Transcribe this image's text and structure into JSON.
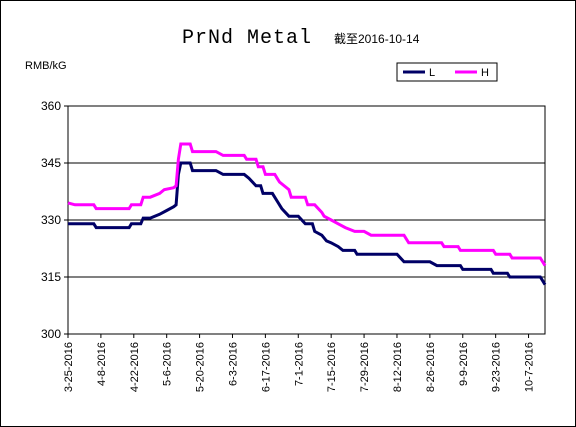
{
  "chart_data": {
    "type": "line",
    "title": "PrNd Metal",
    "subtitle": "截至2016-10-14",
    "ylabel": "RMB/kG",
    "xlabel": "",
    "ylim": [
      300,
      360
    ],
    "yticks": [
      300,
      315,
      330,
      345,
      360
    ],
    "gridlines": [
      315,
      330,
      345
    ],
    "grid": "horizontal",
    "legend_position": "top-right",
    "x_start": "2016-03-25",
    "x_end": "2016-10-14",
    "xtick_labels": [
      "3-25-2016",
      "4-8-2016",
      "4-22-2016",
      "5-6-2016",
      "5-20-2016",
      "6-3-2016",
      "6-17-2016",
      "7-1-2016",
      "7-15-2016",
      "7-29-2016",
      "8-12-2016",
      "8-26-2016",
      "9-9-2016",
      "9-23-2016",
      "10-7-2016"
    ],
    "series": [
      {
        "name": "L",
        "color": "#000066",
        "points": [
          [
            "2016-03-25",
            329
          ],
          [
            "2016-03-29",
            329
          ],
          [
            "2016-03-30",
            329
          ],
          [
            "2016-04-05",
            329
          ],
          [
            "2016-04-06",
            328
          ],
          [
            "2016-04-20",
            328
          ],
          [
            "2016-04-21",
            329
          ],
          [
            "2016-04-25",
            329
          ],
          [
            "2016-04-26",
            330.5
          ],
          [
            "2016-04-29",
            330.5
          ],
          [
            "2016-05-03",
            331.5
          ],
          [
            "2016-05-06",
            332.5
          ],
          [
            "2016-05-09",
            333.5
          ],
          [
            "2016-05-10",
            334
          ],
          [
            "2016-05-11",
            342
          ],
          [
            "2016-05-12",
            345
          ],
          [
            "2016-05-16",
            345
          ],
          [
            "2016-05-17",
            343
          ],
          [
            "2016-05-27",
            343
          ],
          [
            "2016-05-30",
            342
          ],
          [
            "2016-06-08",
            342
          ],
          [
            "2016-06-10",
            341
          ],
          [
            "2016-06-13",
            339
          ],
          [
            "2016-06-15",
            339
          ],
          [
            "2016-06-16",
            337
          ],
          [
            "2016-06-20",
            337
          ],
          [
            "2016-06-22",
            335
          ],
          [
            "2016-06-24",
            333
          ],
          [
            "2016-06-27",
            331
          ],
          [
            "2016-07-01",
            331
          ],
          [
            "2016-07-04",
            329
          ],
          [
            "2016-07-07",
            329
          ],
          [
            "2016-07-08",
            327
          ],
          [
            "2016-07-11",
            326
          ],
          [
            "2016-07-13",
            324.5
          ],
          [
            "2016-07-15",
            324
          ],
          [
            "2016-07-18",
            323
          ],
          [
            "2016-07-20",
            322
          ],
          [
            "2016-07-25",
            322
          ],
          [
            "2016-07-26",
            321
          ],
          [
            "2016-08-12",
            321
          ],
          [
            "2016-08-15",
            319
          ],
          [
            "2016-08-26",
            319
          ],
          [
            "2016-08-29",
            318
          ],
          [
            "2016-09-08",
            318
          ],
          [
            "2016-09-09",
            317
          ],
          [
            "2016-09-21",
            317
          ],
          [
            "2016-09-22",
            316
          ],
          [
            "2016-09-28",
            316
          ],
          [
            "2016-09-29",
            315
          ],
          [
            "2016-10-12",
            315
          ],
          [
            "2016-10-13",
            314
          ],
          [
            "2016-10-14",
            313
          ]
        ]
      },
      {
        "name": "H",
        "color": "#ff00ff",
        "points": [
          [
            "2016-03-25",
            334.5
          ],
          [
            "2016-03-28",
            334
          ],
          [
            "2016-04-05",
            334
          ],
          [
            "2016-04-06",
            333
          ],
          [
            "2016-04-20",
            333
          ],
          [
            "2016-04-21",
            334
          ],
          [
            "2016-04-25",
            334
          ],
          [
            "2016-04-26",
            336
          ],
          [
            "2016-04-29",
            336
          ],
          [
            "2016-05-03",
            337
          ],
          [
            "2016-05-05",
            338
          ],
          [
            "2016-05-09",
            338.5
          ],
          [
            "2016-05-10",
            339
          ],
          [
            "2016-05-11",
            346
          ],
          [
            "2016-05-12",
            350
          ],
          [
            "2016-05-16",
            350
          ],
          [
            "2016-05-17",
            348
          ],
          [
            "2016-05-27",
            348
          ],
          [
            "2016-05-30",
            347
          ],
          [
            "2016-06-08",
            347
          ],
          [
            "2016-06-09",
            346
          ],
          [
            "2016-06-13",
            346
          ],
          [
            "2016-06-14",
            344
          ],
          [
            "2016-06-16",
            344
          ],
          [
            "2016-06-17",
            342
          ],
          [
            "2016-06-21",
            342
          ],
          [
            "2016-06-22",
            341
          ],
          [
            "2016-06-23",
            340
          ],
          [
            "2016-06-27",
            338
          ],
          [
            "2016-06-28",
            336
          ],
          [
            "2016-07-04",
            336
          ],
          [
            "2016-07-05",
            334
          ],
          [
            "2016-07-08",
            334
          ],
          [
            "2016-07-11",
            332
          ],
          [
            "2016-07-12",
            331
          ],
          [
            "2016-07-15",
            330
          ],
          [
            "2016-07-18",
            329
          ],
          [
            "2016-07-21",
            328
          ],
          [
            "2016-07-25",
            327
          ],
          [
            "2016-07-29",
            327
          ],
          [
            "2016-08-01",
            326
          ],
          [
            "2016-08-15",
            326
          ],
          [
            "2016-08-17",
            324
          ],
          [
            "2016-08-31",
            324
          ],
          [
            "2016-09-01",
            323
          ],
          [
            "2016-09-07",
            323
          ],
          [
            "2016-09-08",
            322
          ],
          [
            "2016-09-22",
            322
          ],
          [
            "2016-09-23",
            321
          ],
          [
            "2016-09-29",
            321
          ],
          [
            "2016-09-30",
            320
          ],
          [
            "2016-10-12",
            320
          ],
          [
            "2016-10-13",
            319
          ],
          [
            "2016-10-14",
            318
          ]
        ]
      }
    ]
  }
}
